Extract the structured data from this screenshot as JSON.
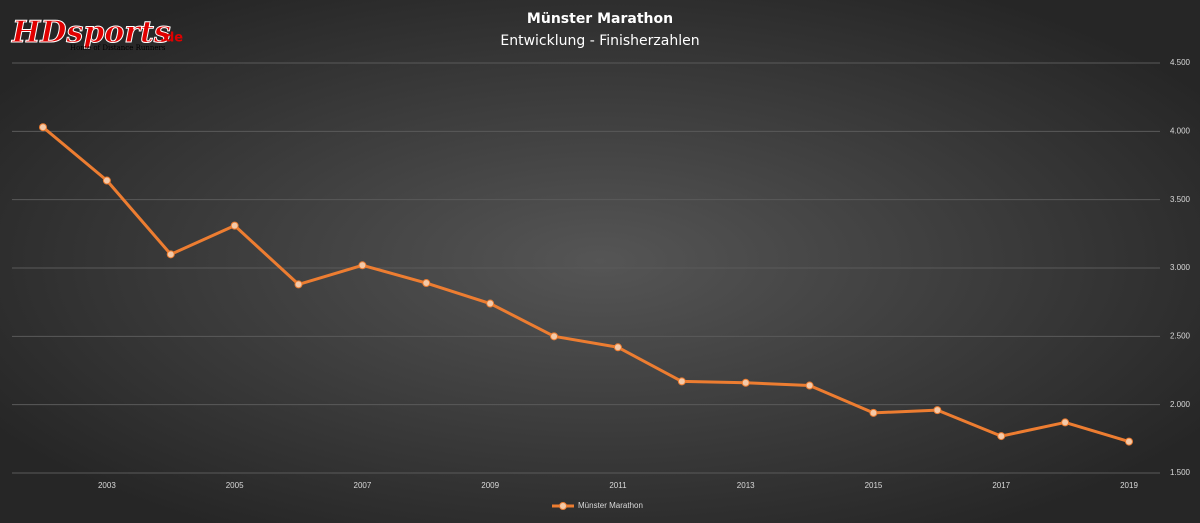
{
  "logo": {
    "brand": "HDsports",
    "suffix": ".de",
    "tagline": "Home of Distance Runners"
  },
  "chart_data": {
    "type": "line",
    "title": "Münster  Marathon",
    "subtitle": "Entwicklung  - Finisherzahlen",
    "categories": [
      null,
      "2003",
      null,
      "2005",
      null,
      "2007",
      null,
      "2009",
      null,
      "2011",
      null,
      "2013",
      null,
      "2015",
      null,
      "2017",
      null,
      "2019"
    ],
    "series": [
      {
        "name": "Münster Marathon",
        "color": "#ed7d31",
        "values": [
          4030,
          3640,
          3100,
          3310,
          2880,
          3020,
          2890,
          2740,
          2500,
          2420,
          2170,
          2160,
          2140,
          1940,
          1960,
          1770,
          1870,
          1730
        ]
      }
    ],
    "ylim": [
      1500,
      4500
    ],
    "yticks": [
      {
        "value": 1500,
        "label": "1.500"
      },
      {
        "value": 2000,
        "label": "2.000"
      },
      {
        "value": 2500,
        "label": "2.500"
      },
      {
        "value": 3000,
        "label": "3.000"
      },
      {
        "value": 3500,
        "label": "3.500"
      },
      {
        "value": 4000,
        "label": "4.000"
      },
      {
        "value": 4500,
        "label": "4.500"
      }
    ],
    "grid": true,
    "y_axis_side": "right",
    "legend": "bottom"
  }
}
